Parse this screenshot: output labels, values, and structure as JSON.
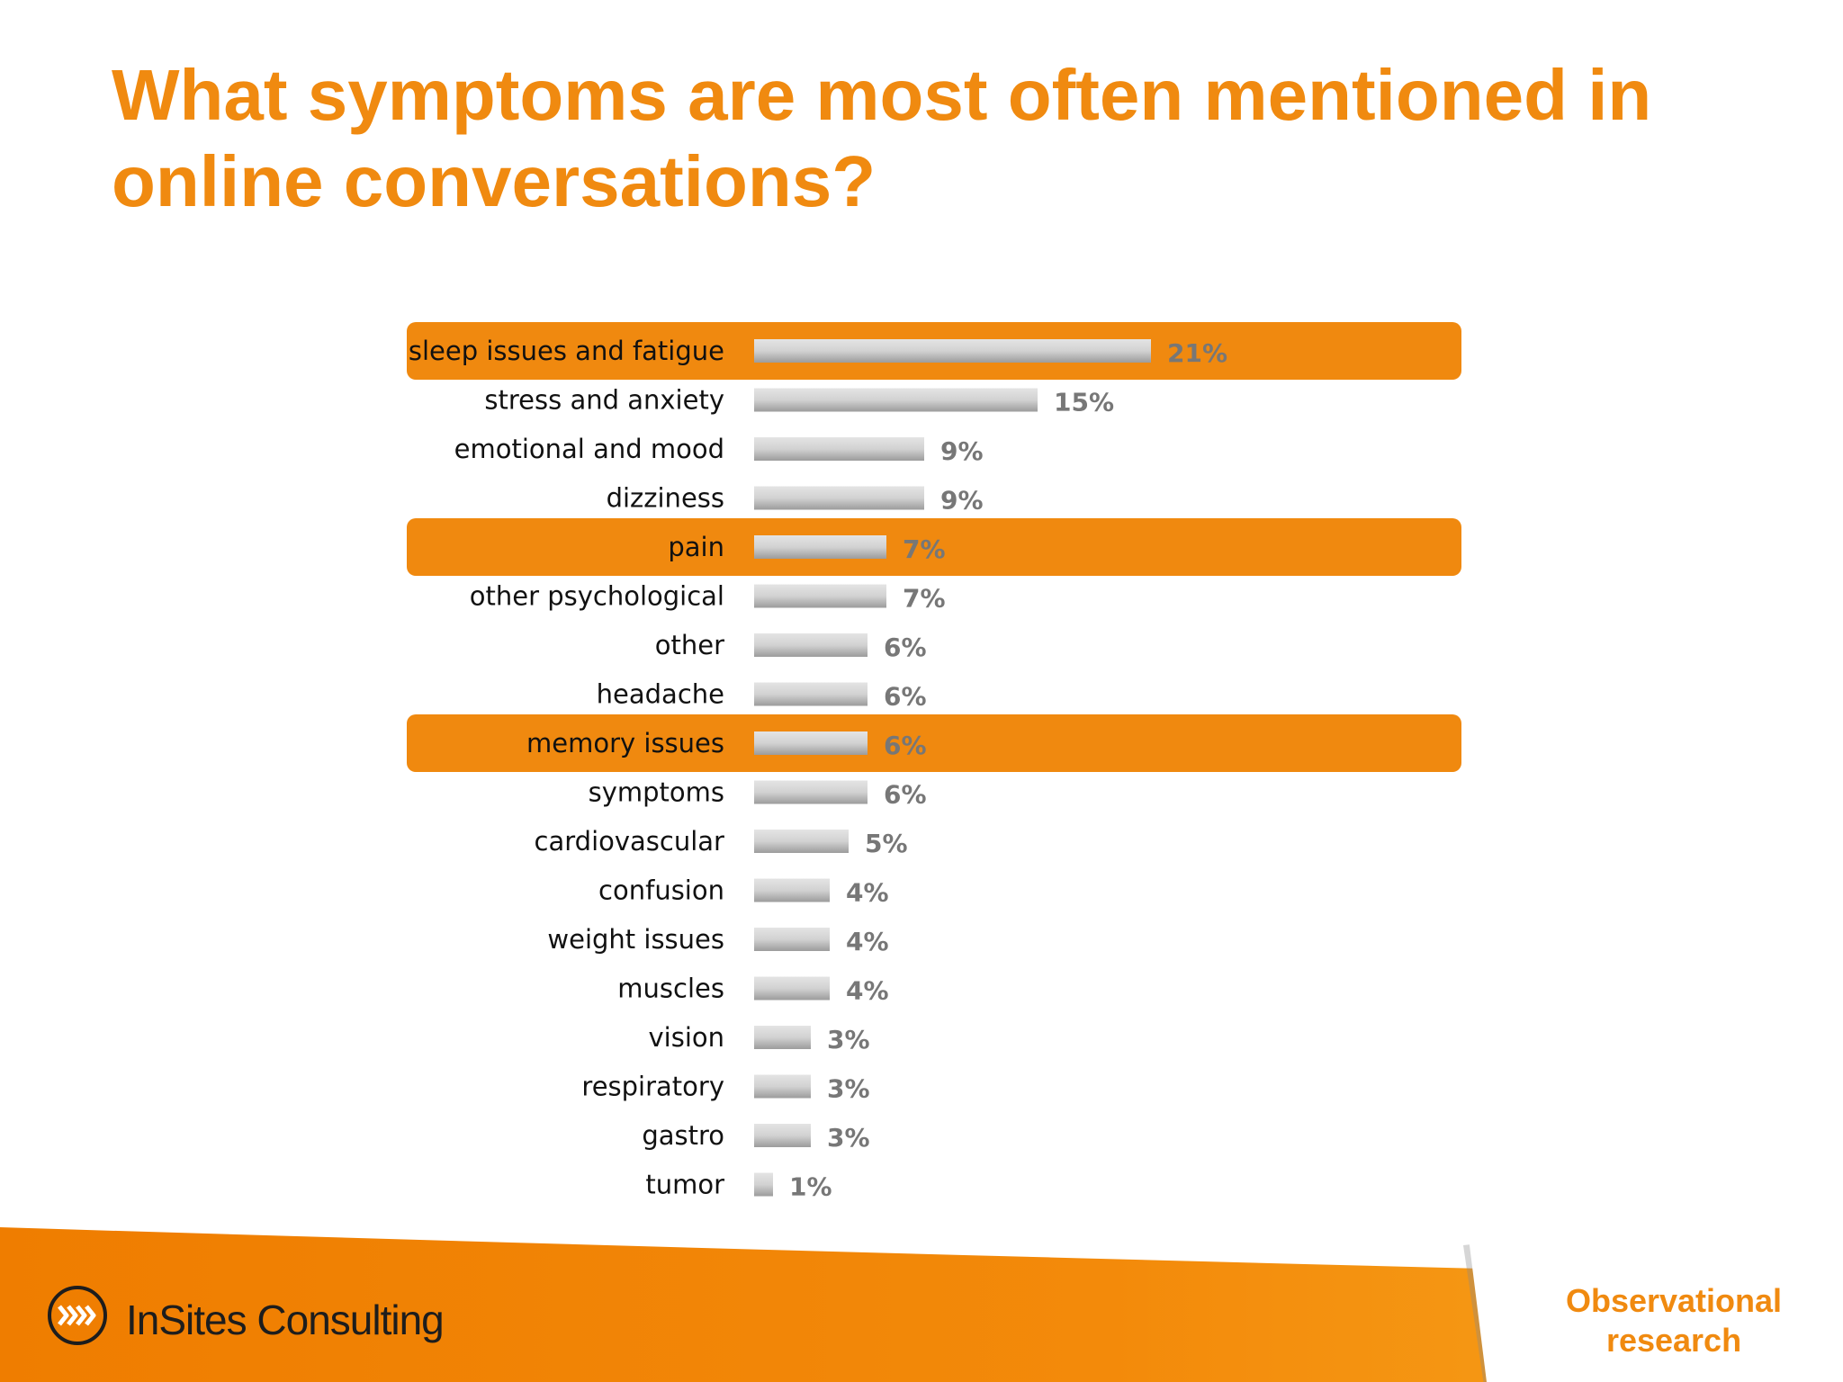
{
  "title": "What symptoms are most often mentioned in online conversations?",
  "colors": {
    "accent": "#f08a10",
    "highlight_band": "#f0890f",
    "bar_gray": "#c8c8c8",
    "value_text": "#777777"
  },
  "footer": {
    "brand": "InSites Consulting",
    "tag_line1": "Observational",
    "tag_line2": "research"
  },
  "chart_data": {
    "type": "bar",
    "orientation": "horizontal",
    "categories": [
      "sleep issues and fatigue",
      "stress and anxiety",
      "emotional and mood",
      "dizziness",
      "pain",
      "other psychological",
      "other",
      "headache",
      "memory issues",
      "symptoms",
      "cardiovascular",
      "confusion",
      "weight issues",
      "muscles",
      "vision",
      "respiratory",
      "gastro",
      "tumor"
    ],
    "values": [
      21,
      15,
      9,
      9,
      7,
      7,
      6,
      6,
      6,
      6,
      5,
      4,
      4,
      4,
      3,
      3,
      3,
      1
    ],
    "value_labels": [
      "21%",
      "15%",
      "9%",
      "9%",
      "7%",
      "7%",
      "6%",
      "6%",
      "6%",
      "6%",
      "5%",
      "4%",
      "4%",
      "4%",
      "3%",
      "3%",
      "3%",
      "1%"
    ],
    "highlighted": [
      "sleep issues and fatigue",
      "pain",
      "memory issues"
    ],
    "grid": false,
    "legend": "none"
  }
}
